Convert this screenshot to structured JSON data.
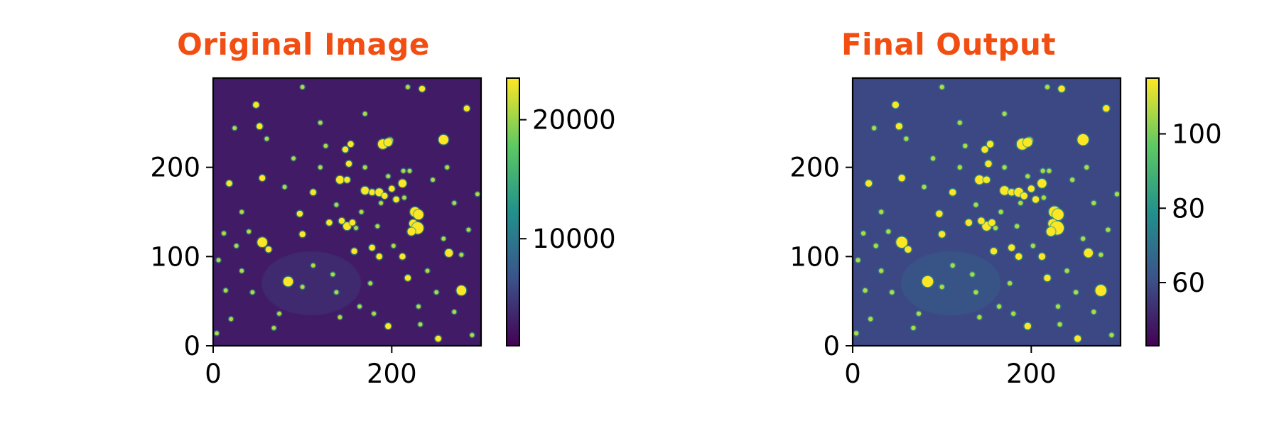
{
  "colors": {
    "title": "#f24e12",
    "axis": "#000000",
    "viridis_dark": "#440154",
    "viridis_blue": "#3b528b",
    "viridis_teal": "#21918c",
    "viridis_green": "#5ec962",
    "viridis_yellow": "#fde725"
  },
  "chart_data": [
    {
      "type": "heatmap",
      "title": "Original Image",
      "colormap": "viridis",
      "x_ticks": [
        "0",
        "200"
      ],
      "y_ticks": [
        "0",
        "100",
        "200"
      ],
      "xlim": [
        0,
        300
      ],
      "ylim": [
        0,
        300
      ],
      "colorbar": {
        "min": 1000,
        "max": 23500,
        "ticks": [
          "10000",
          "20000"
        ]
      },
      "background_level": 0.08,
      "grid": false
    },
    {
      "type": "heatmap",
      "title": "Final Output",
      "colormap": "viridis",
      "x_ticks": [
        "0",
        "200"
      ],
      "y_ticks": [
        "0",
        "100",
        "200"
      ],
      "xlim": [
        0,
        300
      ],
      "ylim": [
        0,
        300
      ],
      "colorbar": {
        "min": 43,
        "max": 115,
        "ticks": [
          "60",
          "80",
          "100"
        ]
      },
      "background_level": 0.22,
      "grid": false
    }
  ],
  "stars": [
    [
      48,
      270,
      2
    ],
    [
      52,
      246,
      2
    ],
    [
      18,
      182,
      2
    ],
    [
      55,
      188,
      2
    ],
    [
      80,
      178,
      1
    ],
    [
      97,
      148,
      2
    ],
    [
      112,
      172,
      2
    ],
    [
      100,
      125,
      2
    ],
    [
      55,
      116,
      4
    ],
    [
      62,
      108,
      2
    ],
    [
      84,
      72,
      4
    ],
    [
      100,
      66,
      1
    ],
    [
      142,
      186,
      3
    ],
    [
      150,
      186,
      2
    ],
    [
      148,
      220,
      2
    ],
    [
      152,
      204,
      2
    ],
    [
      154,
      226,
      2
    ],
    [
      170,
      174,
      3
    ],
    [
      178,
      172,
      2
    ],
    [
      186,
      172,
      3
    ],
    [
      192,
      168,
      2
    ],
    [
      200,
      176,
      2
    ],
    [
      188,
      160,
      1
    ],
    [
      198,
      230,
      2
    ],
    [
      190,
      226,
      4
    ],
    [
      196,
      228,
      3
    ],
    [
      205,
      164,
      2
    ],
    [
      212,
      182,
      3
    ],
    [
      214,
      166,
      1
    ],
    [
      226,
      150,
      4
    ],
    [
      230,
      147,
      4
    ],
    [
      224,
      137,
      3
    ],
    [
      229,
      132,
      5
    ],
    [
      222,
      128,
      3
    ],
    [
      258,
      231,
      4
    ],
    [
      264,
      104,
      3
    ],
    [
      278,
      62,
      4
    ],
    [
      278,
      102,
      1
    ],
    [
      213,
      196,
      1
    ],
    [
      212,
      100,
      2
    ],
    [
      186,
      100,
      2
    ],
    [
      178,
      110,
      2
    ],
    [
      202,
      112,
      1
    ],
    [
      150,
      134,
      3
    ],
    [
      156,
      138,
      2
    ],
    [
      144,
      140,
      2
    ],
    [
      160,
      132,
      1
    ],
    [
      130,
      138,
      2
    ],
    [
      158,
      106,
      2
    ],
    [
      134,
      80,
      1
    ],
    [
      112,
      90,
      1
    ],
    [
      32,
      150,
      1
    ],
    [
      40,
      128,
      1
    ],
    [
      12,
      126,
      1
    ],
    [
      26,
      112,
      1
    ],
    [
      32,
      84,
      1
    ],
    [
      20,
      30,
      1
    ],
    [
      4,
      14,
      1
    ],
    [
      68,
      20,
      1
    ],
    [
      74,
      36,
      1
    ],
    [
      142,
      32,
      1
    ],
    [
      196,
      22,
      2
    ],
    [
      232,
      24,
      1
    ],
    [
      252,
      8,
      2
    ],
    [
      270,
      38,
      1
    ],
    [
      290,
      12,
      1
    ],
    [
      234,
      288,
      2
    ],
    [
      284,
      266,
      2
    ],
    [
      296,
      170,
      1
    ],
    [
      246,
      186,
      1
    ],
    [
      270,
      160,
      1
    ],
    [
      218,
      290,
      1
    ],
    [
      170,
      260,
      1
    ],
    [
      120,
      250,
      1
    ],
    [
      100,
      290,
      1
    ],
    [
      60,
      232,
      1
    ],
    [
      24,
      244,
      1
    ],
    [
      176,
      70,
      1
    ],
    [
      218,
      76,
      2
    ],
    [
      240,
      84,
      1
    ],
    [
      250,
      60,
      1
    ],
    [
      138,
      60,
      1
    ],
    [
      164,
      44,
      1
    ],
    [
      180,
      36,
      1
    ],
    [
      230,
      44,
      1
    ],
    [
      258,
      120,
      1
    ],
    [
      286,
      130,
      1
    ],
    [
      120,
      200,
      1
    ],
    [
      126,
      224,
      1
    ],
    [
      90,
      210,
      1
    ],
    [
      170,
      200,
      1
    ],
    [
      184,
      134,
      1
    ],
    [
      166,
      150,
      1
    ],
    [
      138,
      158,
      1
    ],
    [
      196,
      190,
      1
    ],
    [
      220,
      196,
      1
    ],
    [
      262,
      200,
      1
    ],
    [
      44,
      60,
      1
    ],
    [
      14,
      62,
      1
    ],
    [
      6,
      96,
      1
    ]
  ]
}
